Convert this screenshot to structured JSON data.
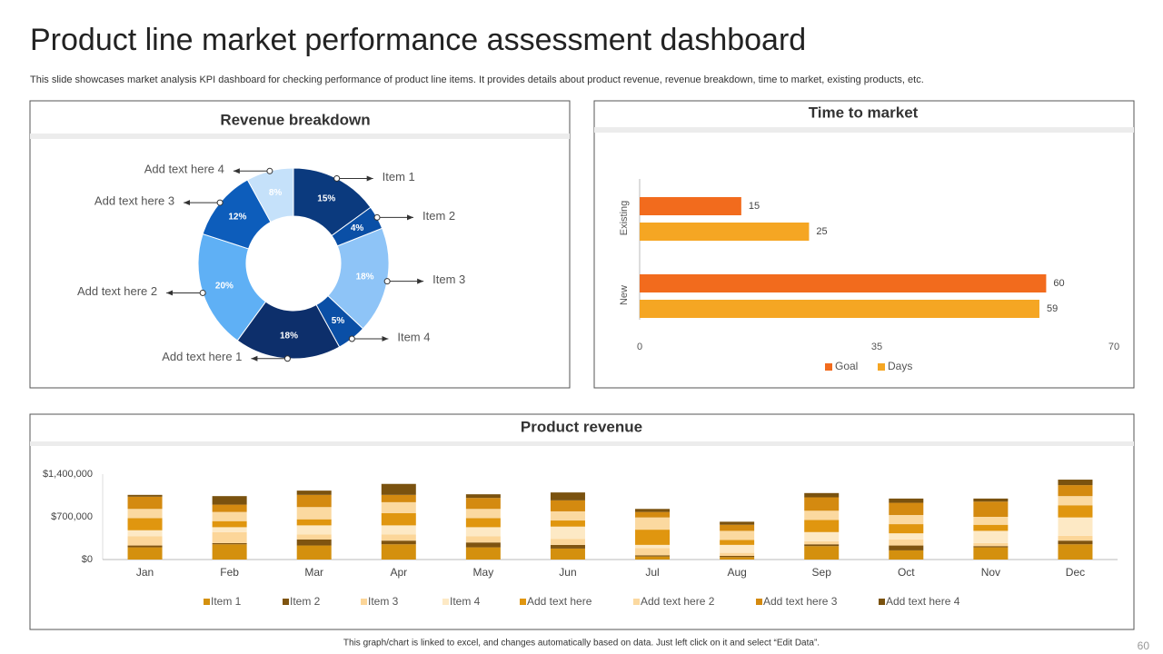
{
  "header": {
    "title": "Product line market performance assessment dashboard",
    "subtitle": "This slide showcases market analysis KPI dashboard for checking performance of product line items. It provides details about product revenue, revenue breakdown, time to market, existing products, etc."
  },
  "chart_data": [
    {
      "type": "pie",
      "title": "Revenue breakdown",
      "categories": [
        "Item 1",
        "Item 2",
        "Item 3",
        "Item 4",
        "Add text here 1",
        "Add text here 2",
        "Add text here 3",
        "Add text here 4"
      ],
      "values": [
        15,
        4,
        18,
        5,
        18,
        20,
        12,
        8
      ],
      "value_labels": [
        "15%",
        "4%",
        "18%",
        "5%",
        "18%",
        "20%",
        "12%",
        "8%"
      ],
      "colors": [
        "#0b3a7e",
        "#0a4fa6",
        "#8ec4f7",
        "#0a4fa6",
        "#0d2f6b",
        "#5fb0f5",
        "#0d5dbb",
        "#c5e1fa"
      ]
    },
    {
      "type": "barh",
      "title": "Time to market",
      "categories": [
        "Existing",
        "New"
      ],
      "series": [
        {
          "name": "Goal",
          "color": "#f26b1d",
          "values": [
            15,
            60
          ]
        },
        {
          "name": "Days",
          "color": "#f5a623",
          "values": [
            25,
            59
          ]
        }
      ],
      "xlim": [
        0,
        70
      ],
      "xticks": [
        0,
        35,
        70
      ],
      "legend": "bottom"
    },
    {
      "type": "stacked_bar",
      "title": "Product revenue",
      "categories": [
        "Jan",
        "Feb",
        "Mar",
        "Apr",
        "May",
        "Jun",
        "Jul",
        "Aug",
        "Sep",
        "Oct",
        "Nov",
        "Dec"
      ],
      "series": [
        {
          "name": "Item 1",
          "color": "#d4900e",
          "values": [
            200000,
            250000,
            230000,
            250000,
            200000,
            180000,
            50000,
            40000,
            220000,
            150000,
            200000,
            250000
          ]
        },
        {
          "name": "Item 2",
          "color": "#7f5410",
          "values": [
            30000,
            20000,
            100000,
            60000,
            80000,
            60000,
            20000,
            20000,
            30000,
            80000,
            20000,
            60000
          ]
        },
        {
          "name": "Item 3",
          "color": "#fcd699",
          "values": [
            150000,
            180000,
            80000,
            100000,
            100000,
            100000,
            120000,
            50000,
            50000,
            100000,
            50000,
            80000
          ]
        },
        {
          "name": "Item 4",
          "color": "#fde9c5",
          "values": [
            100000,
            80000,
            150000,
            150000,
            150000,
            200000,
            50000,
            130000,
            150000,
            100000,
            200000,
            300000
          ]
        },
        {
          "name": "Add text here",
          "color": "#e0960f",
          "values": [
            200000,
            100000,
            100000,
            200000,
            150000,
            100000,
            250000,
            80000,
            200000,
            150000,
            100000,
            200000
          ]
        },
        {
          "name": "Add text here 2",
          "color": "#fbd9a0",
          "values": [
            150000,
            150000,
            200000,
            180000,
            150000,
            150000,
            200000,
            150000,
            150000,
            150000,
            130000,
            150000
          ]
        },
        {
          "name": "Add text here 3",
          "color": "#d48a10",
          "values": [
            200000,
            120000,
            200000,
            120000,
            180000,
            180000,
            90000,
            100000,
            220000,
            200000,
            250000,
            180000
          ]
        },
        {
          "name": "Add text here 4",
          "color": "#7a520f",
          "values": [
            30000,
            140000,
            70000,
            180000,
            60000,
            130000,
            50000,
            50000,
            70000,
            70000,
            50000,
            90000
          ]
        }
      ],
      "ylim": [
        0,
        1400000
      ],
      "yticks": [
        {
          "value": 0,
          "label": "$0"
        },
        {
          "value": 700000,
          "label": "$700,000"
        },
        {
          "value": 1400000,
          "label": "$1,400,000"
        }
      ],
      "legend": "bottom"
    }
  ],
  "footer": {
    "note": "This graph/chart is linked to excel, and changes automatically based on data. Just left click on it and select “Edit Data”.",
    "page": "60"
  }
}
